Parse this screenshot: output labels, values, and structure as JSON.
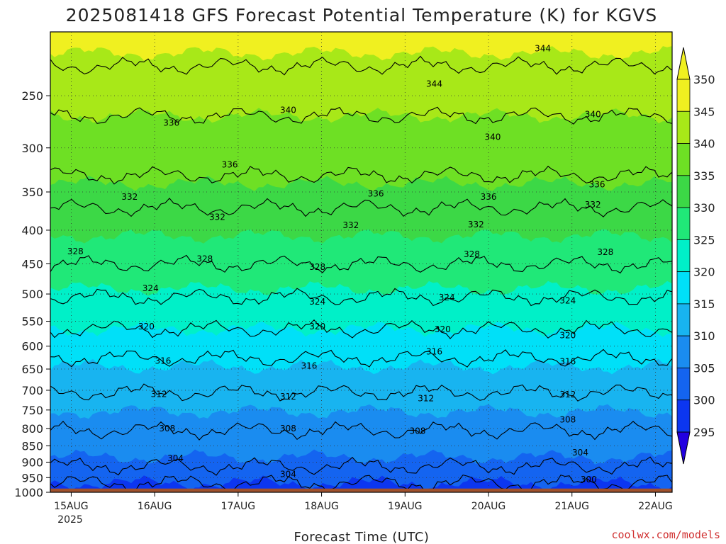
{
  "chart_data": {
    "type": "heatmap",
    "title": "2025081418 GFS Forecast Potential Temperature (K) for KGVS",
    "xlabel": "Forecast Time (UTC)",
    "ylabel": "",
    "credit": "coolwx.com/models",
    "x_ticks": [
      "15AUG",
      "16AUG",
      "17AUG",
      "18AUG",
      "19AUG",
      "20AUG",
      "21AUG",
      "22AUG"
    ],
    "x_year_label": "2025",
    "x_range": [
      14.75,
      22.2
    ],
    "y_ticks": [
      250,
      300,
      350,
      400,
      450,
      500,
      550,
      600,
      650,
      700,
      750,
      800,
      850,
      900,
      950,
      1000
    ],
    "y_range": [
      200,
      1000
    ],
    "y_scale": "log-pressure",
    "ground_pressure": 987,
    "colorbar": {
      "levels": [
        295,
        300,
        305,
        310,
        315,
        320,
        325,
        330,
        335,
        340,
        345,
        350
      ],
      "colors": [
        "#2200e0",
        "#0c36f0",
        "#1464f0",
        "#1a8cf0",
        "#18b4f0",
        "#00e0f8",
        "#00f0c8",
        "#20e878",
        "#3cd846",
        "#6ee024",
        "#a8e818",
        "#f0f020"
      ]
    },
    "contour_levels": [
      300,
      304,
      308,
      312,
      316,
      320,
      324,
      328,
      332,
      336,
      340,
      344
    ],
    "contour_pressure_profile": [
      {
        "level": 300,
        "pressure": 968
      },
      {
        "level": 304,
        "pressure": 912
      },
      {
        "level": 308,
        "pressure": 805
      },
      {
        "level": 312,
        "pressure": 705
      },
      {
        "level": 316,
        "pressure": 625
      },
      {
        "level": 320,
        "pressure": 565
      },
      {
        "level": 324,
        "pressure": 505
      },
      {
        "level": 328,
        "pressure": 450
      },
      {
        "level": 332,
        "pressure": 370
      },
      {
        "level": 336,
        "pressure": 330
      },
      {
        "level": 340,
        "pressure": 268
      },
      {
        "level": 344,
        "pressure": 225
      }
    ],
    "contour_labels": [
      {
        "text": "344",
        "x": 20.65,
        "p": 212
      },
      {
        "text": "344",
        "x": 19.35,
        "p": 240
      },
      {
        "text": "340",
        "x": 17.6,
        "p": 263
      },
      {
        "text": "336",
        "x": 16.2,
        "p": 275
      },
      {
        "text": "340",
        "x": 21.25,
        "p": 267
      },
      {
        "text": "340",
        "x": 20.05,
        "p": 289
      },
      {
        "text": "336",
        "x": 16.9,
        "p": 318
      },
      {
        "text": "336",
        "x": 18.65,
        "p": 352
      },
      {
        "text": "336",
        "x": 20.0,
        "p": 356
      },
      {
        "text": "336",
        "x": 21.3,
        "p": 341
      },
      {
        "text": "332",
        "x": 15.7,
        "p": 356
      },
      {
        "text": "332",
        "x": 16.75,
        "p": 382
      },
      {
        "text": "332",
        "x": 18.35,
        "p": 393
      },
      {
        "text": "332",
        "x": 19.85,
        "p": 392
      },
      {
        "text": "332",
        "x": 21.25,
        "p": 366
      },
      {
        "text": "328",
        "x": 15.05,
        "p": 431
      },
      {
        "text": "328",
        "x": 16.6,
        "p": 442
      },
      {
        "text": "328",
        "x": 17.95,
        "p": 455
      },
      {
        "text": "328",
        "x": 19.8,
        "p": 435
      },
      {
        "text": "328",
        "x": 21.4,
        "p": 432
      },
      {
        "text": "324",
        "x": 15.95,
        "p": 490
      },
      {
        "text": "324",
        "x": 17.95,
        "p": 514
      },
      {
        "text": "324",
        "x": 19.5,
        "p": 506
      },
      {
        "text": "324",
        "x": 20.95,
        "p": 512
      },
      {
        "text": "320",
        "x": 15.9,
        "p": 560
      },
      {
        "text": "320",
        "x": 17.95,
        "p": 560
      },
      {
        "text": "320",
        "x": 19.45,
        "p": 566
      },
      {
        "text": "320",
        "x": 20.95,
        "p": 578
      },
      {
        "text": "316",
        "x": 16.1,
        "p": 632
      },
      {
        "text": "316",
        "x": 17.85,
        "p": 643
      },
      {
        "text": "316",
        "x": 19.35,
        "p": 612
      },
      {
        "text": "316",
        "x": 20.95,
        "p": 633
      },
      {
        "text": "312",
        "x": 16.05,
        "p": 710
      },
      {
        "text": "312",
        "x": 17.6,
        "p": 716
      },
      {
        "text": "312",
        "x": 19.25,
        "p": 720
      },
      {
        "text": "312",
        "x": 20.95,
        "p": 711
      },
      {
        "text": "308",
        "x": 16.15,
        "p": 800
      },
      {
        "text": "308",
        "x": 17.6,
        "p": 800
      },
      {
        "text": "308",
        "x": 19.15,
        "p": 807
      },
      {
        "text": "308",
        "x": 20.95,
        "p": 776
      },
      {
        "text": "304",
        "x": 16.25,
        "p": 888
      },
      {
        "text": "304",
        "x": 17.6,
        "p": 939
      },
      {
        "text": "304",
        "x": 21.1,
        "p": 871
      },
      {
        "text": "300",
        "x": 21.2,
        "p": 956
      }
    ]
  }
}
